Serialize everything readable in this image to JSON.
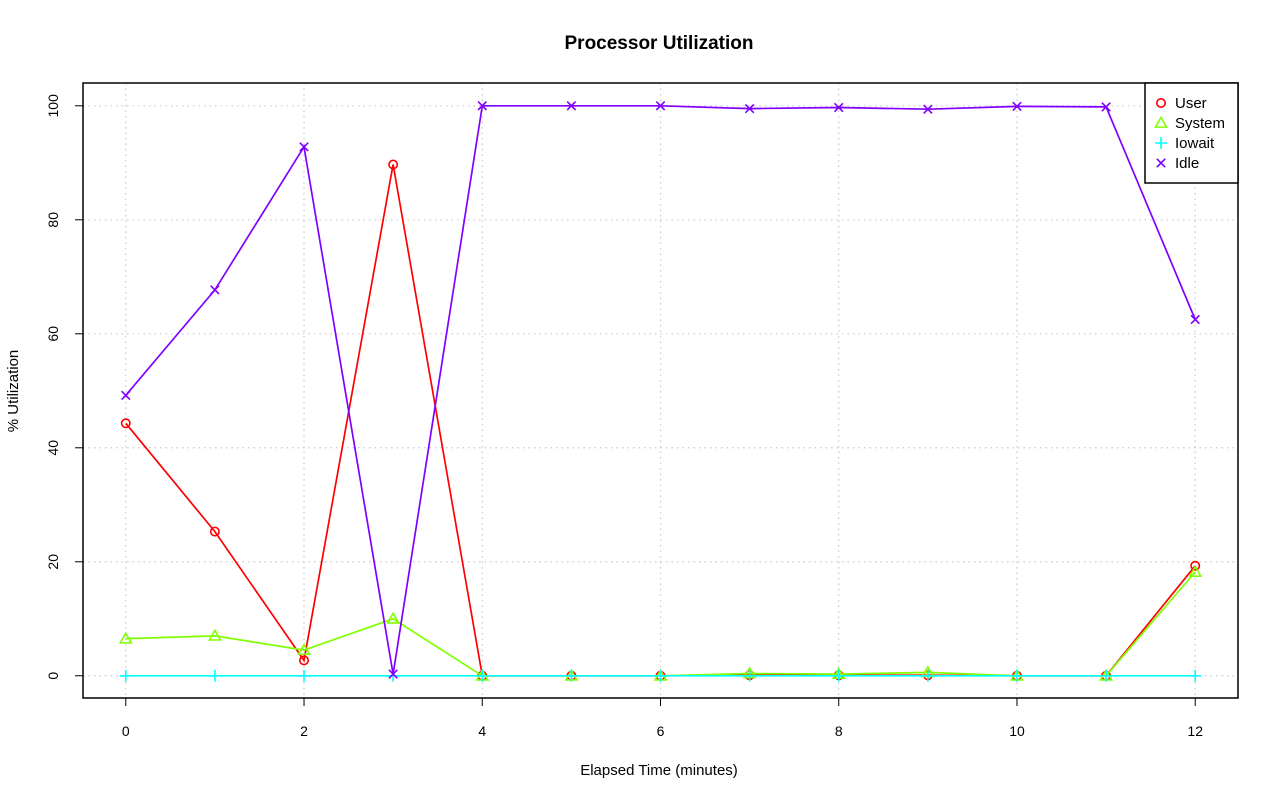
{
  "chart_data": {
    "type": "line",
    "title": "Processor Utilization",
    "xlabel": "Elapsed Time (minutes)",
    "ylabel": "% Utilization",
    "xlim": [
      -0.48,
      12.48
    ],
    "ylim": [
      -3.9,
      104.0
    ],
    "x_ticks": [
      0,
      2,
      4,
      6,
      8,
      10,
      12
    ],
    "y_ticks": [
      0,
      20,
      40,
      60,
      80,
      100
    ],
    "grid": true,
    "legend_position": "top-right",
    "x": [
      0,
      1,
      2,
      3,
      4,
      5,
      6,
      7,
      8,
      9,
      10,
      11,
      12
    ],
    "series": [
      {
        "name": "User",
        "color": "#ff0000",
        "marker": "circle",
        "values": [
          44.3,
          25.3,
          2.7,
          89.7,
          0,
          0,
          0,
          0.1,
          0.1,
          0.1,
          0,
          0,
          19.3
        ]
      },
      {
        "name": "System",
        "color": "#80ff00",
        "marker": "triangle",
        "values": [
          6.5,
          7.0,
          4.5,
          10.0,
          0,
          0,
          0,
          0.4,
          0.3,
          0.6,
          0,
          0,
          18.2
        ]
      },
      {
        "name": "Iowait",
        "color": "#00ffff",
        "marker": "plus",
        "values": [
          0,
          0,
          0,
          0,
          0,
          0,
          0,
          0,
          0,
          0,
          0,
          0,
          0
        ]
      },
      {
        "name": "Idle",
        "color": "#8000ff",
        "marker": "cross",
        "values": [
          49.2,
          67.7,
          92.8,
          0.3,
          100,
          100,
          100,
          99.5,
          99.7,
          99.4,
          99.9,
          99.8,
          62.5
        ]
      }
    ]
  }
}
